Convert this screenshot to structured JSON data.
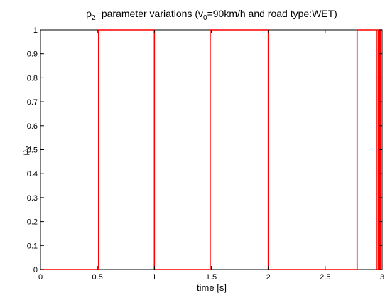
{
  "chart_data": {
    "type": "line",
    "title": {
      "prefix": "ρ",
      "prefix_sub": "2",
      "mid": "−parameter variations (v",
      "mid_sub": "0",
      "suffix": "=90km/h and road type:WET)"
    },
    "xlabel": "time [s]",
    "ylabel": {
      "main": "ρ",
      "sub": "2"
    },
    "xlim": [
      0,
      3
    ],
    "ylim": [
      0,
      1
    ],
    "xticks": [
      0,
      0.5,
      1,
      1.5,
      2,
      2.5,
      3
    ],
    "xtick_labels": [
      "0",
      "0.5",
      "1",
      "1.5",
      "2",
      "2.5",
      "3"
    ],
    "yticks": [
      0,
      0.1,
      0.2,
      0.3,
      0.4,
      0.5,
      0.6,
      0.7,
      0.8,
      0.9,
      1
    ],
    "ytick_labels": [
      "0",
      "0.1",
      "0.2",
      "0.3",
      "0.4",
      "0.5",
      "0.6",
      "0.7",
      "0.8",
      "0.9",
      "1"
    ],
    "grid": false,
    "series": [
      {
        "color": "#ff0000",
        "x": [
          0,
          0.51,
          0.51,
          1.0,
          1.0,
          1.49,
          1.49,
          2.0,
          2.0,
          2.78,
          2.78,
          2.95,
          2.95,
          2.965,
          2.965,
          2.975,
          2.975,
          2.985,
          2.985,
          3.0
        ],
        "y": [
          0,
          0,
          1,
          1,
          0,
          0,
          1,
          1,
          0,
          0,
          1,
          1,
          0,
          0,
          1,
          1,
          0,
          0,
          1,
          1
        ]
      }
    ]
  }
}
